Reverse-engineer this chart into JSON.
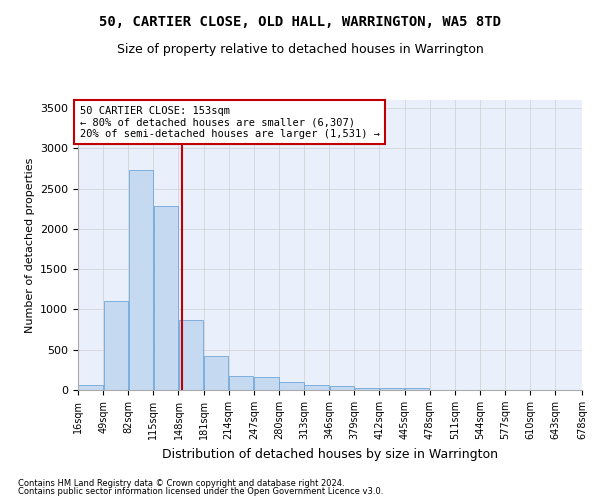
{
  "title": "50, CARTIER CLOSE, OLD HALL, WARRINGTON, WA5 8TD",
  "subtitle": "Size of property relative to detached houses in Warrington",
  "xlabel": "Distribution of detached houses by size in Warrington",
  "ylabel": "Number of detached properties",
  "footer_line1": "Contains HM Land Registry data © Crown copyright and database right 2024.",
  "footer_line2": "Contains public sector information licensed under the Open Government Licence v3.0.",
  "annotation_title": "50 CARTIER CLOSE: 153sqm",
  "annotation_line1": "← 80% of detached houses are smaller (6,307)",
  "annotation_line2": "20% of semi-detached houses are larger (1,531) →",
  "bin_edges": [
    16,
    49,
    82,
    115,
    148,
    181,
    214,
    247,
    280,
    313,
    346,
    379,
    412,
    445,
    478,
    511,
    544,
    577,
    610,
    643,
    678
  ],
  "bar_values": [
    60,
    1100,
    2730,
    2290,
    870,
    420,
    170,
    165,
    100,
    60,
    55,
    30,
    30,
    20,
    0,
    0,
    0,
    0,
    0,
    0
  ],
  "bar_color": "#c5d9f1",
  "bar_edge_color": "#5b9bd5",
  "vline_color": "#c00000",
  "vline_x": 153,
  "ylim": [
    0,
    3600
  ],
  "yticks": [
    0,
    500,
    1000,
    1500,
    2000,
    2500,
    3000,
    3500
  ],
  "grid_color": "#d0d0d0",
  "background_color": "#eaf0fb",
  "title_fontsize": 10,
  "subtitle_fontsize": 9,
  "ylabel_fontsize": 8,
  "xlabel_fontsize": 9,
  "annotation_box_edge_color": "#c00000",
  "annotation_box_face_color": "#ffffff",
  "annotation_fontsize": 7.5
}
